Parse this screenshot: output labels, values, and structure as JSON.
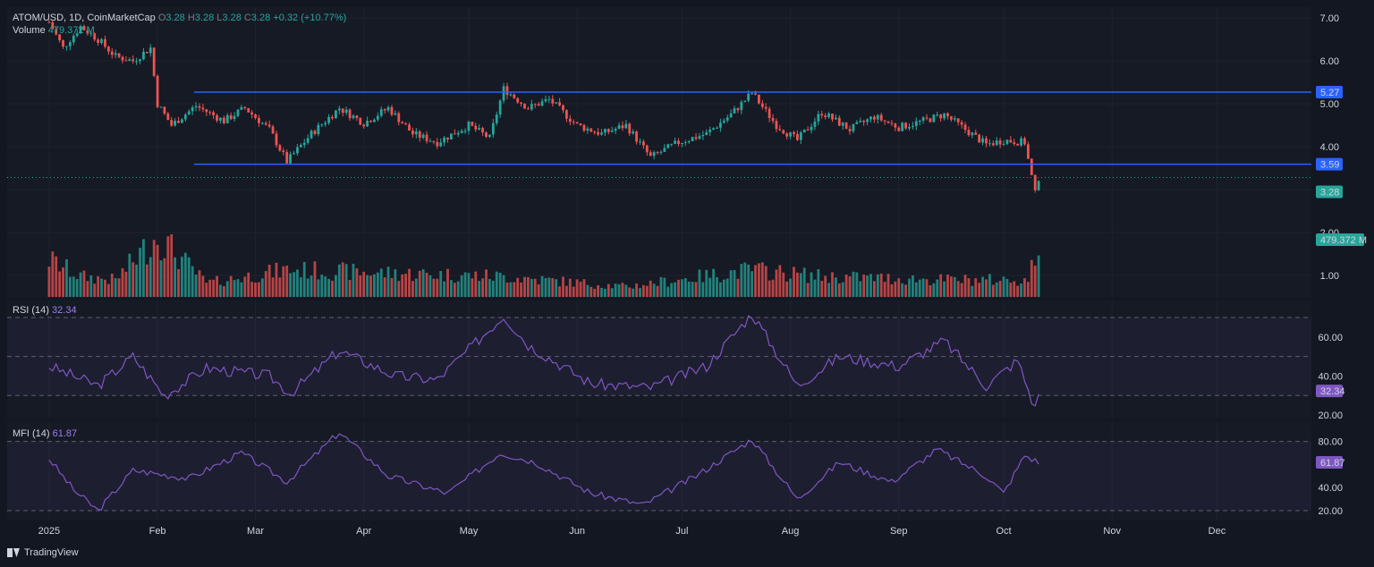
{
  "header": {
    "symbol": "ATOM/USD, 1D, CoinMarketCap",
    "ohlc": {
      "o": "3.28",
      "h": "3.28",
      "l": "3.28",
      "c": "3.28",
      "chg": "+0.32 (+10.77%)"
    },
    "volume_label": "Volume",
    "volume_value": "479.372 M"
  },
  "rsi": {
    "label": "RSI (14)",
    "value": "32.34"
  },
  "mfi": {
    "label": "MFI (14)",
    "value": "61.87"
  },
  "footer": {
    "brand": "TradingView"
  },
  "colors": {
    "up": "#26a69a",
    "down": "#ef5350",
    "line": "#2962ff",
    "osc": "#7e57c2"
  },
  "chart_data": {
    "type": "candlestick",
    "price_axis": {
      "ticks": [
        "7.00",
        "6.00",
        "5.00",
        "4.00",
        "3.00",
        "2.00",
        "1.00"
      ]
    },
    "x_labels": [
      "2025",
      "Feb",
      "Mar",
      "Apr",
      "May",
      "Jun",
      "Jul",
      "Aug",
      "Sep",
      "Oct",
      "Nov",
      "Dec"
    ],
    "levels": [
      {
        "value": 5.27,
        "label": "5.27"
      },
      {
        "value": 3.59,
        "label": "3.59"
      }
    ],
    "last_price": {
      "value": 3.28,
      "label": "3.28"
    },
    "last_volume_label": "479.372 M",
    "price_path": [
      {
        "x": "2025-01-01",
        "y": 6.9
      },
      {
        "x": "2025-01-05",
        "y": 6.3
      },
      {
        "x": "2025-01-10",
        "y": 6.8
      },
      {
        "x": "2025-01-15",
        "y": 6.5
      },
      {
        "x": "2025-01-20",
        "y": 6.1
      },
      {
        "x": "2025-01-25",
        "y": 6.0
      },
      {
        "x": "2025-01-30",
        "y": 6.3
      },
      {
        "x": "2025-02-01",
        "y": 5.0
      },
      {
        "x": "2025-02-05",
        "y": 4.5
      },
      {
        "x": "2025-02-12",
        "y": 4.95
      },
      {
        "x": "2025-02-20",
        "y": 4.6
      },
      {
        "x": "2025-02-26",
        "y": 4.9
      },
      {
        "x": "2025-03-05",
        "y": 4.4
      },
      {
        "x": "2025-03-10",
        "y": 3.65
      },
      {
        "x": "2025-03-17",
        "y": 4.3
      },
      {
        "x": "2025-03-25",
        "y": 4.9
      },
      {
        "x": "2025-04-01",
        "y": 4.55
      },
      {
        "x": "2025-04-08",
        "y": 4.9
      },
      {
        "x": "2025-04-15",
        "y": 4.3
      },
      {
        "x": "2025-04-22",
        "y": 4.1
      },
      {
        "x": "2025-05-01",
        "y": 4.5
      },
      {
        "x": "2025-05-07",
        "y": 4.2
      },
      {
        "x": "2025-05-11",
        "y": 5.35
      },
      {
        "x": "2025-05-18",
        "y": 4.9
      },
      {
        "x": "2025-05-24",
        "y": 5.1
      },
      {
        "x": "2025-06-01",
        "y": 4.5
      },
      {
        "x": "2025-06-08",
        "y": 4.3
      },
      {
        "x": "2025-06-15",
        "y": 4.5
      },
      {
        "x": "2025-06-22",
        "y": 3.75
      },
      {
        "x": "2025-06-30",
        "y": 4.1
      },
      {
        "x": "2025-07-08",
        "y": 4.3
      },
      {
        "x": "2025-07-15",
        "y": 4.75
      },
      {
        "x": "2025-07-21",
        "y": 5.25
      },
      {
        "x": "2025-07-28",
        "y": 4.5
      },
      {
        "x": "2025-08-03",
        "y": 4.15
      },
      {
        "x": "2025-08-10",
        "y": 4.8
      },
      {
        "x": "2025-08-18",
        "y": 4.4
      },
      {
        "x": "2025-08-25",
        "y": 4.7
      },
      {
        "x": "2025-09-01",
        "y": 4.45
      },
      {
        "x": "2025-09-08",
        "y": 4.6
      },
      {
        "x": "2025-09-14",
        "y": 4.75
      },
      {
        "x": "2025-09-20",
        "y": 4.4
      },
      {
        "x": "2025-09-26",
        "y": 4.05
      },
      {
        "x": "2025-10-01",
        "y": 4.15
      },
      {
        "x": "2025-10-07",
        "y": 4.1
      },
      {
        "x": "2025-10-10",
        "y": 2.9
      },
      {
        "x": "2025-10-11",
        "y": 3.28
      }
    ],
    "volume_path": [
      {
        "x": "2025-01-01",
        "v": 0.55
      },
      {
        "x": "2025-01-10",
        "v": 0.3
      },
      {
        "x": "2025-01-20",
        "v": 0.25
      },
      {
        "x": "2025-02-01",
        "v": 0.9
      },
      {
        "x": "2025-02-15",
        "v": 0.2
      },
      {
        "x": "2025-03-10",
        "v": 0.4
      },
      {
        "x": "2025-04-08",
        "v": 0.35
      },
      {
        "x": "2025-05-11",
        "v": 0.3
      },
      {
        "x": "2025-06-15",
        "v": 0.15
      },
      {
        "x": "2025-07-21",
        "v": 0.4
      },
      {
        "x": "2025-08-10",
        "v": 0.3
      },
      {
        "x": "2025-09-15",
        "v": 0.25
      },
      {
        "x": "2025-10-08",
        "v": 0.25
      },
      {
        "x": "2025-10-10",
        "v": 0.6
      },
      {
        "x": "2025-10-11",
        "v": 0.8
      }
    ],
    "rsi": {
      "ticks": [
        "60.00",
        "40.00",
        "20.00"
      ],
      "bands": [
        70,
        50,
        30
      ],
      "series": [
        {
          "x": "2025-01-01",
          "y": 45
        },
        {
          "x": "2025-01-15",
          "y": 35
        },
        {
          "x": "2025-01-25",
          "y": 50
        },
        {
          "x": "2025-02-03",
          "y": 30
        },
        {
          "x": "2025-02-15",
          "y": 44
        },
        {
          "x": "2025-03-05",
          "y": 40
        },
        {
          "x": "2025-03-11",
          "y": 31
        },
        {
          "x": "2025-03-25",
          "y": 53
        },
        {
          "x": "2025-04-10",
          "y": 40
        },
        {
          "x": "2025-04-22",
          "y": 38
        },
        {
          "x": "2025-05-11",
          "y": 71
        },
        {
          "x": "2025-05-18",
          "y": 56
        },
        {
          "x": "2025-06-05",
          "y": 36
        },
        {
          "x": "2025-06-22",
          "y": 34
        },
        {
          "x": "2025-07-08",
          "y": 45
        },
        {
          "x": "2025-07-21",
          "y": 72
        },
        {
          "x": "2025-08-03",
          "y": 35
        },
        {
          "x": "2025-08-15",
          "y": 50
        },
        {
          "x": "2025-09-01",
          "y": 45
        },
        {
          "x": "2025-09-14",
          "y": 58
        },
        {
          "x": "2025-09-26",
          "y": 35
        },
        {
          "x": "2025-10-05",
          "y": 48
        },
        {
          "x": "2025-10-10",
          "y": 23
        },
        {
          "x": "2025-10-11",
          "y": 32.34
        }
      ]
    },
    "mfi": {
      "ticks": [
        "80.00",
        "60.00",
        "40.00",
        "20.00"
      ],
      "bands": [
        80,
        20
      ],
      "series": [
        {
          "x": "2025-01-01",
          "y": 65
        },
        {
          "x": "2025-01-08",
          "y": 38
        },
        {
          "x": "2025-01-15",
          "y": 20
        },
        {
          "x": "2025-01-25",
          "y": 55
        },
        {
          "x": "2025-02-10",
          "y": 48
        },
        {
          "x": "2025-02-25",
          "y": 70
        },
        {
          "x": "2025-03-10",
          "y": 45
        },
        {
          "x": "2025-03-25",
          "y": 88
        },
        {
          "x": "2025-04-08",
          "y": 50
        },
        {
          "x": "2025-04-25",
          "y": 35
        },
        {
          "x": "2025-05-10",
          "y": 70
        },
        {
          "x": "2025-05-20",
          "y": 62
        },
        {
          "x": "2025-06-05",
          "y": 35
        },
        {
          "x": "2025-06-20",
          "y": 25
        },
        {
          "x": "2025-07-05",
          "y": 50
        },
        {
          "x": "2025-07-21",
          "y": 82
        },
        {
          "x": "2025-08-03",
          "y": 30
        },
        {
          "x": "2025-08-15",
          "y": 62
        },
        {
          "x": "2025-08-30",
          "y": 45
        },
        {
          "x": "2025-09-12",
          "y": 73
        },
        {
          "x": "2025-09-26",
          "y": 50
        },
        {
          "x": "2025-10-01",
          "y": 35
        },
        {
          "x": "2025-10-07",
          "y": 68
        },
        {
          "x": "2025-10-11",
          "y": 61.87
        }
      ]
    }
  }
}
